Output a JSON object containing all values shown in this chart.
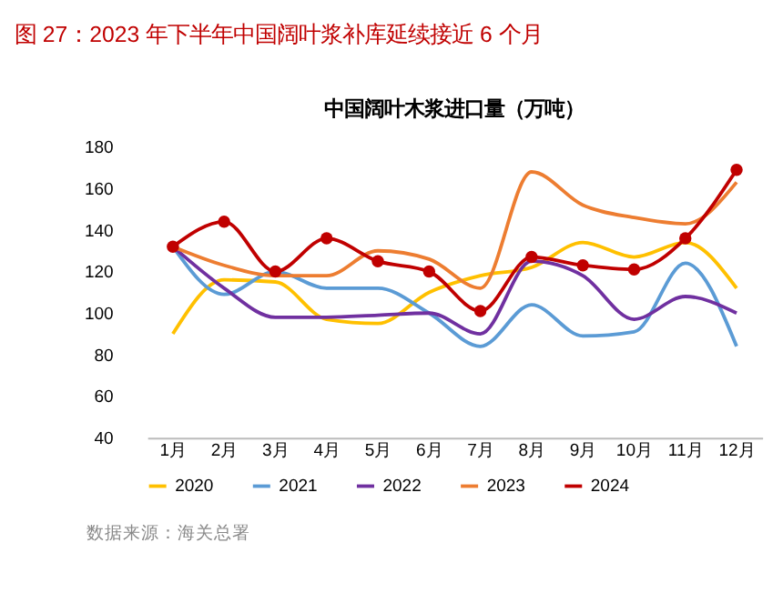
{
  "chart_data": {
    "type": "line",
    "title": "图 27：2023 年下半年中国阔叶浆补库延续接近 6 个月",
    "subtitle": "中国阔叶木浆进口量（万吨）",
    "categories": [
      "1月",
      "2月",
      "3月",
      "4月",
      "5月",
      "6月",
      "7月",
      "8月",
      "9月",
      "10月",
      "11月",
      "12月"
    ],
    "series": [
      {
        "name": "2020",
        "color": "#ffc000",
        "marker": "none",
        "values": [
          90,
          116,
          115,
          97,
          95,
          110,
          118,
          122,
          134,
          127,
          134,
          112
        ]
      },
      {
        "name": "2021",
        "color": "#5b9bd5",
        "marker": "none",
        "values": [
          132,
          109,
          120,
          112,
          112,
          100,
          84,
          104,
          89,
          91,
          124,
          84
        ]
      },
      {
        "name": "2022",
        "color": "#7030a0",
        "marker": "none",
        "values": [
          132,
          112,
          98,
          98,
          99,
          100,
          90,
          125,
          118,
          97,
          108,
          100
        ]
      },
      {
        "name": "2023",
        "color": "#ed7d31",
        "marker": "none",
        "values": [
          132,
          123,
          118,
          118,
          130,
          126,
          112,
          168,
          152,
          146,
          143,
          163
        ]
      },
      {
        "name": "2024",
        "color": "#c00000",
        "marker": "circle",
        "values": [
          132,
          144,
          120,
          136,
          125,
          120,
          101,
          127,
          123,
          121,
          136,
          169
        ]
      }
    ],
    "ylim": [
      40,
      180
    ],
    "yticks": [
      40,
      60,
      80,
      100,
      120,
      140,
      160,
      180
    ],
    "grid": false,
    "legend": "bottom",
    "annotations": [
      "数据来源：海关总署"
    ]
  }
}
